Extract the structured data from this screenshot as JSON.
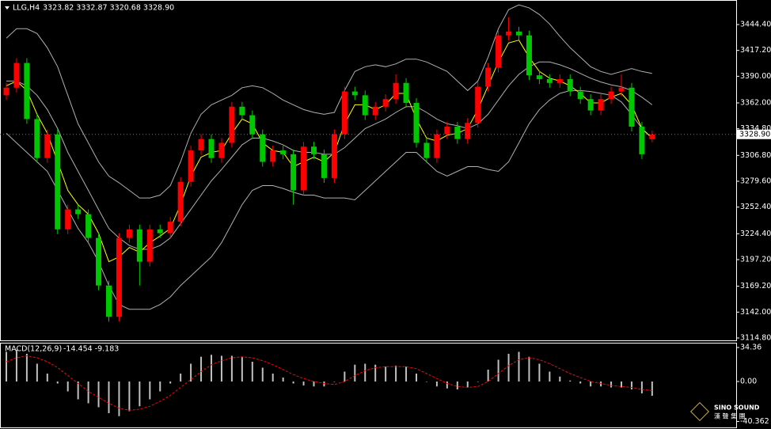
{
  "chart_data": [
    {
      "type": "candlestick",
      "title": "LLG,H4",
      "ohlc_label": "3323.82 3332.87 3320.68 3328.90",
      "last_price_label": "3328.90",
      "up_color": "#ff0000",
      "down_color": "#00c800",
      "open": [
        3370,
        3378,
        3404,
        3345,
        3304,
        3329,
        3229,
        3250,
        3245,
        3220,
        3170,
        3137,
        3220,
        3229,
        3195,
        3229,
        3225,
        3237,
        3279,
        3312,
        3324,
        3304,
        3320,
        3358,
        3349,
        3329,
        3300,
        3312,
        3308,
        3270,
        3316,
        3308,
        3283,
        3329,
        3374,
        3370,
        3349,
        3358,
        3366,
        3383,
        3362,
        3320,
        3304,
        3329,
        3337,
        3324,
        3341,
        3379,
        3399,
        3433,
        3437,
        3433,
        3391,
        3387,
        3383,
        3387,
        3374,
        3366,
        3354,
        3366,
        3374,
        3378,
        3337,
        3323.82
      ],
      "high": [
        3383,
        3409,
        3409,
        3350,
        3334,
        3334,
        3255,
        3255,
        3250,
        3225,
        3175,
        3225,
        3234,
        3234,
        3234,
        3234,
        3242,
        3284,
        3317,
        3329,
        3329,
        3325,
        3363,
        3363,
        3354,
        3334,
        3317,
        3317,
        3313,
        3321,
        3321,
        3313,
        3334,
        3379,
        3379,
        3375,
        3363,
        3371,
        3392,
        3388,
        3367,
        3325,
        3334,
        3342,
        3342,
        3346,
        3384,
        3404,
        3438,
        3452,
        3442,
        3438,
        3396,
        3392,
        3392,
        3392,
        3379,
        3371,
        3371,
        3379,
        3392,
        3383,
        3342,
        3332.87
      ],
      "low": [
        3365,
        3373,
        3340,
        3299,
        3299,
        3224,
        3224,
        3240,
        3215,
        3165,
        3132,
        3132,
        3215,
        3170,
        3190,
        3220,
        3220,
        3232,
        3274,
        3307,
        3299,
        3299,
        3315,
        3344,
        3324,
        3295,
        3295,
        3303,
        3255,
        3265,
        3303,
        3278,
        3278,
        3324,
        3365,
        3344,
        3344,
        3353,
        3361,
        3357,
        3315,
        3299,
        3299,
        3324,
        3319,
        3319,
        3336,
        3374,
        3394,
        3428,
        3428,
        3386,
        3382,
        3378,
        3378,
        3369,
        3361,
        3349,
        3349,
        3361,
        3369,
        3332,
        3303,
        3320.68
      ],
      "close": [
        3378,
        3404,
        3345,
        3304,
        3329,
        3229,
        3250,
        3245,
        3220,
        3170,
        3137,
        3220,
        3229,
        3195,
        3229,
        3225,
        3237,
        3279,
        3312,
        3324,
        3304,
        3320,
        3358,
        3349,
        3329,
        3300,
        3312,
        3308,
        3270,
        3316,
        3308,
        3283,
        3329,
        3374,
        3370,
        3349,
        3358,
        3366,
        3383,
        3362,
        3320,
        3304,
        3329,
        3337,
        3324,
        3341,
        3379,
        3399,
        3433,
        3437,
        3433,
        3391,
        3387,
        3383,
        3387,
        3374,
        3366,
        3354,
        3366,
        3374,
        3378,
        3337,
        3308,
        3328.9
      ],
      "series": [
        {
          "color": "#b0b0b0",
          "values": [
            3430,
            3440,
            3440,
            3435,
            3420,
            3400,
            3370,
            3340,
            3320,
            3300,
            3285,
            3278,
            3270,
            3262,
            3262,
            3265,
            3275,
            3300,
            3330,
            3350,
            3360,
            3365,
            3370,
            3378,
            3380,
            3378,
            3372,
            3365,
            3360,
            3355,
            3352,
            3350,
            3352,
            3375,
            3395,
            3400,
            3402,
            3400,
            3403,
            3408,
            3408,
            3405,
            3400,
            3395,
            3385,
            3375,
            3385,
            3410,
            3440,
            3460,
            3465,
            3462,
            3455,
            3445,
            3432,
            3420,
            3410,
            3400,
            3395,
            3392,
            3395,
            3398,
            3395,
            3393
          ]
        },
        {
          "color": "#b0b0b0",
          "values": [
            3385,
            3385,
            3380,
            3370,
            3355,
            3335,
            3310,
            3290,
            3270,
            3250,
            3230,
            3220,
            3212,
            3208,
            3208,
            3212,
            3220,
            3235,
            3250,
            3265,
            3280,
            3292,
            3305,
            3318,
            3325,
            3325,
            3322,
            3318,
            3312,
            3310,
            3310,
            3308,
            3308,
            3315,
            3325,
            3335,
            3340,
            3345,
            3352,
            3358,
            3358,
            3352,
            3345,
            3340,
            3338,
            3335,
            3340,
            3350,
            3365,
            3380,
            3392,
            3400,
            3405,
            3405,
            3402,
            3398,
            3393,
            3388,
            3384,
            3381,
            3379,
            3375,
            3368,
            3360
          ]
        },
        {
          "color": "#b0b0b0",
          "values": [
            3330,
            3320,
            3310,
            3300,
            3290,
            3270,
            3250,
            3230,
            3215,
            3195,
            3170,
            3150,
            3145,
            3145,
            3145,
            3150,
            3158,
            3170,
            3180,
            3190,
            3200,
            3215,
            3235,
            3255,
            3270,
            3275,
            3275,
            3272,
            3268,
            3265,
            3265,
            3262,
            3262,
            3262,
            3260,
            3270,
            3280,
            3290,
            3300,
            3310,
            3310,
            3300,
            3290,
            3285,
            3290,
            3295,
            3295,
            3292,
            3290,
            3300,
            3320,
            3340,
            3355,
            3365,
            3372,
            3375,
            3375,
            3374,
            3372,
            3370,
            3363,
            3350,
            3335,
            3325
          ]
        },
        {
          "color": "#ffff00",
          "values": [
            3380,
            3385,
            3375,
            3350,
            3330,
            3300,
            3270,
            3255,
            3245,
            3225,
            3195,
            3200,
            3210,
            3205,
            3215,
            3222,
            3230,
            3255,
            3285,
            3305,
            3310,
            3312,
            3330,
            3345,
            3340,
            3320,
            3312,
            3310,
            3295,
            3300,
            3305,
            3300,
            3310,
            3340,
            3360,
            3360,
            3355,
            3360,
            3372,
            3372,
            3345,
            3325,
            3322,
            3328,
            3330,
            3335,
            3355,
            3380,
            3405,
            3425,
            3428,
            3410,
            3395,
            3388,
            3385,
            3380,
            3372,
            3362,
            3362,
            3368,
            3372,
            3360,
            3335,
            3325
          ]
        }
      ],
      "ylim": [
        3112.3,
        3470.2
      ],
      "yticks": [
        {
          "value": 3444.4,
          "label": "3444.40"
        },
        {
          "value": 3417.2,
          "label": "3417.20"
        },
        {
          "value": 3390,
          "label": "3390.00"
        },
        {
          "value": 3362,
          "label": "3362.00"
        },
        {
          "value": 3334.8,
          "label": "3334.80"
        },
        {
          "value": 3306.8,
          "label": "3306.80"
        },
        {
          "value": 3279.6,
          "label": "3279.60"
        },
        {
          "value": 3252.4,
          "label": "3252.40"
        },
        {
          "value": 3224.4,
          "label": "3224.40"
        },
        {
          "value": 3197.2,
          "label": "3197.20"
        },
        {
          "value": 3169.2,
          "label": "3169.20"
        },
        {
          "value": 3142,
          "label": "3142.00"
        },
        {
          "value": 3114.8,
          "label": "3114.80"
        }
      ]
    },
    {
      "type": "macd",
      "title": "MACD(12,26,9)",
      "title_values": "-14.454 -9.183",
      "histogram": {
        "color": "#c0c0c0",
        "values": [
          30,
          32,
          28,
          18,
          8,
          -2,
          -10,
          -18,
          -22,
          -26,
          -32,
          -35,
          -30,
          -25,
          -18,
          -10,
          -2,
          8,
          18,
          25,
          27,
          26,
          26,
          25,
          20,
          14,
          8,
          4,
          -2,
          -4,
          -5,
          -5,
          0,
          10,
          17,
          18,
          17,
          15,
          16,
          15,
          8,
          0,
          -5,
          -7,
          -8,
          -6,
          0,
          12,
          22,
          28,
          30,
          25,
          18,
          10,
          5,
          1,
          -2,
          -5,
          -5,
          -6,
          -6,
          -8,
          -12,
          -14.454
        ]
      },
      "signal": {
        "color": "#ff0000",
        "values": [
          20,
          24,
          26,
          24,
          20,
          14,
          6,
          -2,
          -10,
          -16,
          -22,
          -27,
          -29,
          -28,
          -25,
          -20,
          -14,
          -6,
          2,
          10,
          17,
          21,
          24,
          25,
          24,
          21,
          17,
          12,
          7,
          3,
          0,
          -2,
          -3,
          0,
          6,
          11,
          14,
          15,
          15,
          15,
          13,
          8,
          3,
          -2,
          -5,
          -6,
          -5,
          0,
          8,
          16,
          22,
          24,
          22,
          18,
          13,
          8,
          4,
          0,
          -2,
          -4,
          -5,
          -6,
          -8,
          -9.183
        ]
      },
      "ylim": [
        -46.4,
        39.2
      ],
      "yticks": [
        34.36,
        {
          "value": 0,
          "label": "0.00"
        },
        -40.362
      ]
    }
  ],
  "logo": {
    "name": "SINO SOUND",
    "subtitle": "漢 聲 集 團"
  }
}
